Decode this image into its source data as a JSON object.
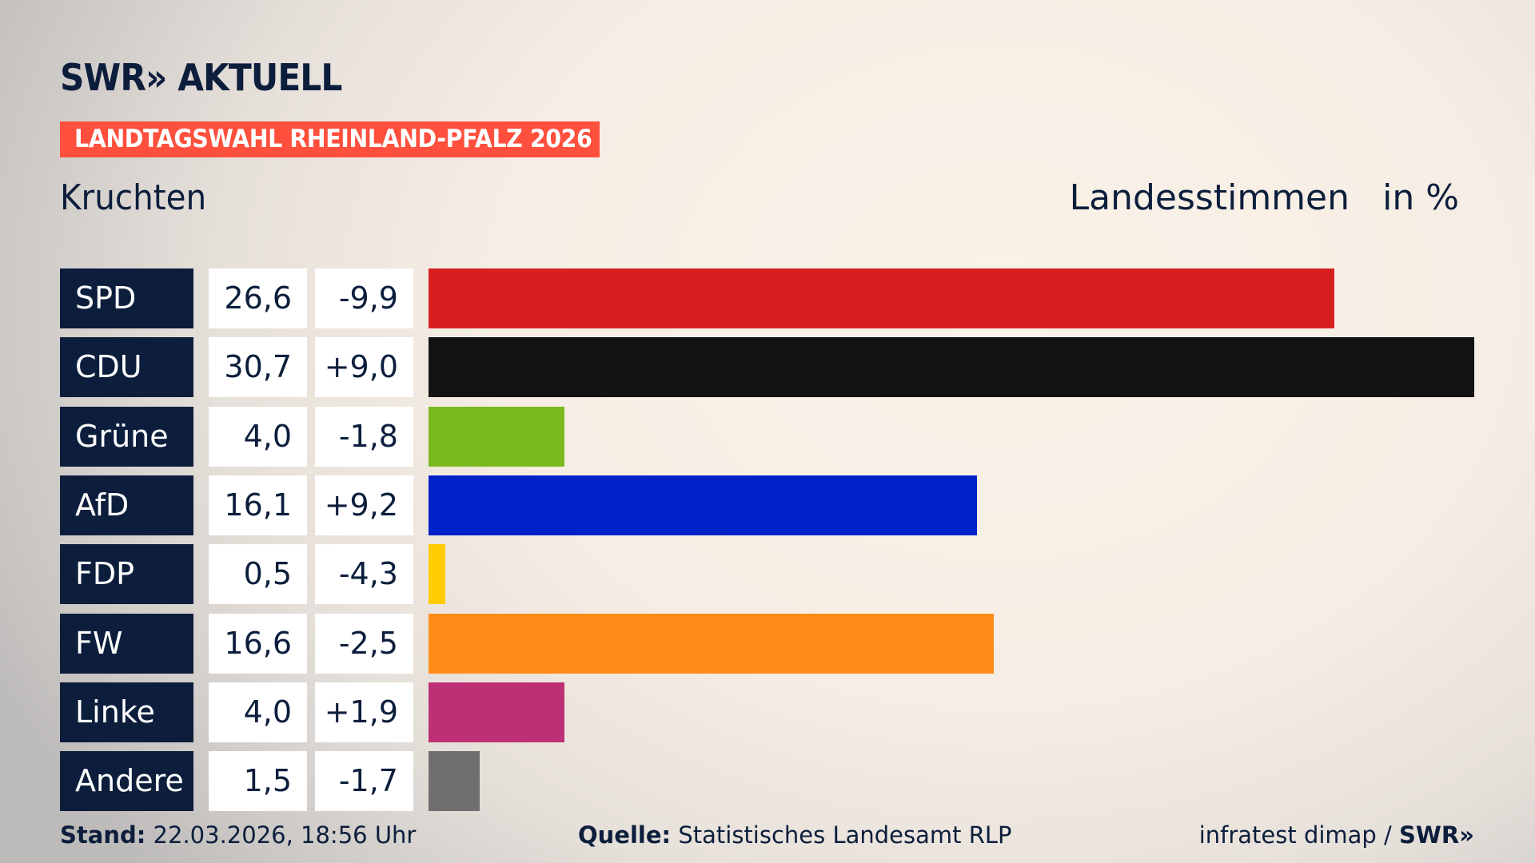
{
  "header": {
    "logo": "SWR» AKTUELL",
    "banner": "LANDTAGSWAHL RHEINLAND-PFALZ 2026",
    "place": "Kruchten",
    "measure": "Landesstimmen",
    "unit": "in %"
  },
  "colors": {
    "navy": "#0c1e3c",
    "banner": "#ff4f3d"
  },
  "chart_data": {
    "type": "bar",
    "orientation": "horizontal",
    "categories": [
      "SPD",
      "CDU",
      "Grüne",
      "AfD",
      "FDP",
      "FW",
      "Linke",
      "Andere"
    ],
    "values": [
      26.6,
      30.7,
      4.0,
      16.1,
      0.5,
      16.6,
      4.0,
      1.5
    ],
    "value_labels": [
      "26,6",
      "30,7",
      "4,0",
      "16,1",
      "0,5",
      "16,6",
      "4,0",
      "1,5"
    ],
    "change_labels": [
      "-9,9",
      "+9,0",
      "-1,8",
      "+9,2",
      "-4,3",
      "-2,5",
      "+1,9",
      "-1,7"
    ],
    "changes": [
      -9.9,
      9.0,
      -1.8,
      9.2,
      -4.3,
      -2.5,
      1.9,
      -1.7
    ],
    "colors": [
      "#d81f20",
      "#121212",
      "#7aba1e",
      "#0020c8",
      "#ffcc00",
      "#ff8c17",
      "#bd3075",
      "#6f6f6f"
    ],
    "xlim": [
      0,
      30.7
    ],
    "grid": false
  },
  "footer": {
    "stand_label": "Stand:",
    "stand_value": "22.03.2026, 18:56 Uhr",
    "source_label": "Quelle:",
    "source_value": "Statistisches Landesamt RLP",
    "credit": "infratest dimap / ",
    "credit_logo": "SWR»"
  }
}
